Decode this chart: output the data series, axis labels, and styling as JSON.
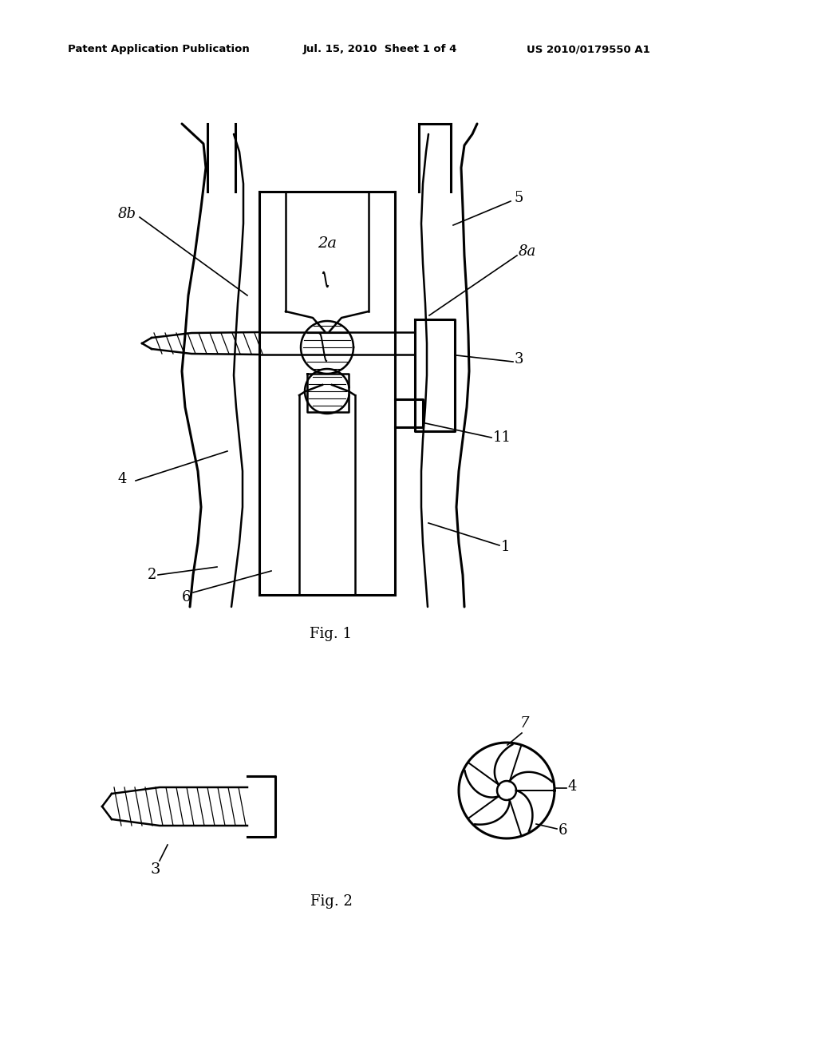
{
  "background_color": "#ffffff",
  "header_left": "Patent Application Publication",
  "header_mid": "Jul. 15, 2010  Sheet 1 of 4",
  "header_right": "US 2010/0179550 A1",
  "fig1_label": "Fig. 1",
  "fig2_label": "Fig. 2",
  "lw": 1.8,
  "lw_thick": 2.2
}
